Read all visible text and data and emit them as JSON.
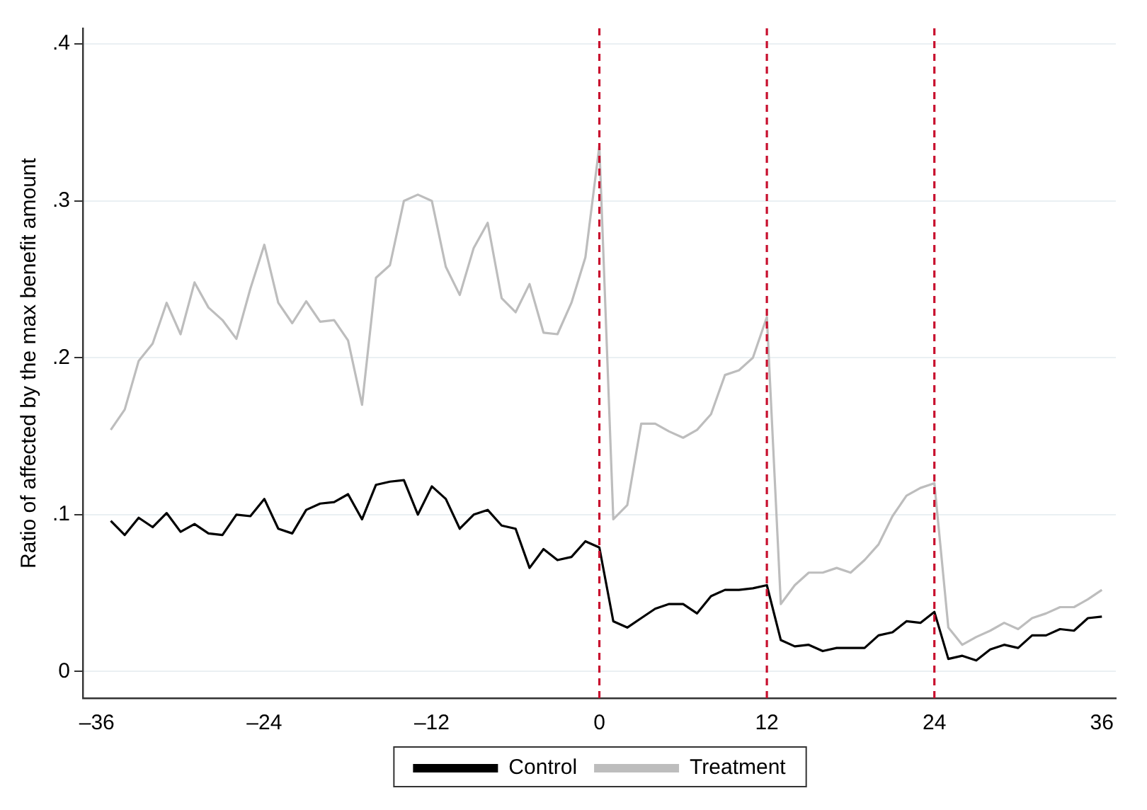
{
  "chart_data": {
    "type": "line",
    "ylabel": "Ratio of affected by the max benefit amount",
    "x": [
      -35,
      -34,
      -33,
      -32,
      -31,
      -30,
      -29,
      -28,
      -27,
      -26,
      -25,
      -24,
      -23,
      -22,
      -21,
      -20,
      -19,
      -18,
      -17,
      -16,
      -15,
      -14,
      -13,
      -12,
      -11,
      -10,
      -9,
      -8,
      -7,
      -6,
      -5,
      -4,
      -3,
      -2,
      -1,
      0,
      1,
      2,
      3,
      4,
      5,
      6,
      7,
      8,
      9,
      10,
      11,
      12,
      13,
      14,
      15,
      16,
      17,
      18,
      19,
      20,
      21,
      22,
      23,
      24,
      25,
      26,
      27,
      28,
      29,
      30,
      31,
      32,
      33,
      34,
      35,
      36
    ],
    "series": [
      {
        "name": "Control",
        "color": "#000000",
        "values": [
          0.096,
          0.087,
          0.098,
          0.092,
          0.101,
          0.089,
          0.094,
          0.088,
          0.087,
          0.1,
          0.099,
          0.11,
          0.091,
          0.088,
          0.103,
          0.107,
          0.108,
          0.113,
          0.097,
          0.119,
          0.121,
          0.122,
          0.1,
          0.118,
          0.11,
          0.091,
          0.1,
          0.103,
          0.093,
          0.091,
          0.066,
          0.078,
          0.071,
          0.073,
          0.083,
          0.079,
          0.032,
          0.028,
          0.034,
          0.04,
          0.043,
          0.043,
          0.037,
          0.048,
          0.052,
          0.052,
          0.053,
          0.055,
          0.02,
          0.016,
          0.017,
          0.013,
          0.015,
          0.015,
          0.015,
          0.023,
          0.025,
          0.032,
          0.031,
          0.038,
          0.008,
          0.01,
          0.007,
          0.014,
          0.017,
          0.015,
          0.023,
          0.023,
          0.027,
          0.026,
          0.034,
          0.035
        ]
      },
      {
        "name": "Treatment",
        "color": "#bdbdbd",
        "values": [
          0.154,
          0.167,
          0.198,
          0.209,
          0.235,
          0.215,
          0.248,
          0.232,
          0.224,
          0.212,
          0.244,
          0.272,
          0.235,
          0.222,
          0.236,
          0.223,
          0.224,
          0.211,
          0.17,
          0.251,
          0.259,
          0.3,
          0.304,
          0.3,
          0.258,
          0.24,
          0.27,
          0.286,
          0.238,
          0.229,
          0.247,
          0.216,
          0.215,
          0.235,
          0.264,
          0.335,
          0.097,
          0.106,
          0.158,
          0.158,
          0.153,
          0.149,
          0.154,
          0.164,
          0.189,
          0.192,
          0.2,
          0.226,
          0.043,
          0.055,
          0.063,
          0.063,
          0.066,
          0.063,
          0.071,
          0.081,
          0.099,
          0.112,
          0.117,
          0.12,
          0.028,
          0.017,
          0.022,
          0.026,
          0.031,
          0.027,
          0.034,
          0.037,
          0.041,
          0.041,
          0.046,
          0.052
        ]
      }
    ],
    "xlim": [
      -37,
      37
    ],
    "xticks": [
      {
        "value": -36,
        "label": "–36"
      },
      {
        "value": -24,
        "label": "–24"
      },
      {
        "value": -12,
        "label": "–12"
      },
      0,
      12,
      24,
      36
    ],
    "ylim": [
      -0.017,
      0.41
    ],
    "yticks": [
      {
        "value": 0,
        "label": "0"
      },
      {
        "value": 0.1,
        "label": ".1"
      },
      {
        "value": 0.2,
        "label": ".2"
      },
      {
        "value": 0.3,
        "label": ".3"
      },
      {
        "value": 0.4,
        "label": ".4"
      }
    ],
    "ref_lines": [
      {
        "axis": "x",
        "value": 0,
        "color": "#c8102e",
        "line_style": "dashed"
      },
      {
        "axis": "x",
        "value": 12,
        "color": "#c8102e",
        "line_style": "dashed"
      },
      {
        "axis": "x",
        "value": 24,
        "color": "#c8102e",
        "line_style": "dashed"
      }
    ],
    "grid": "y",
    "legend": "bottom",
    "marker": "none",
    "line_style": "solid"
  }
}
